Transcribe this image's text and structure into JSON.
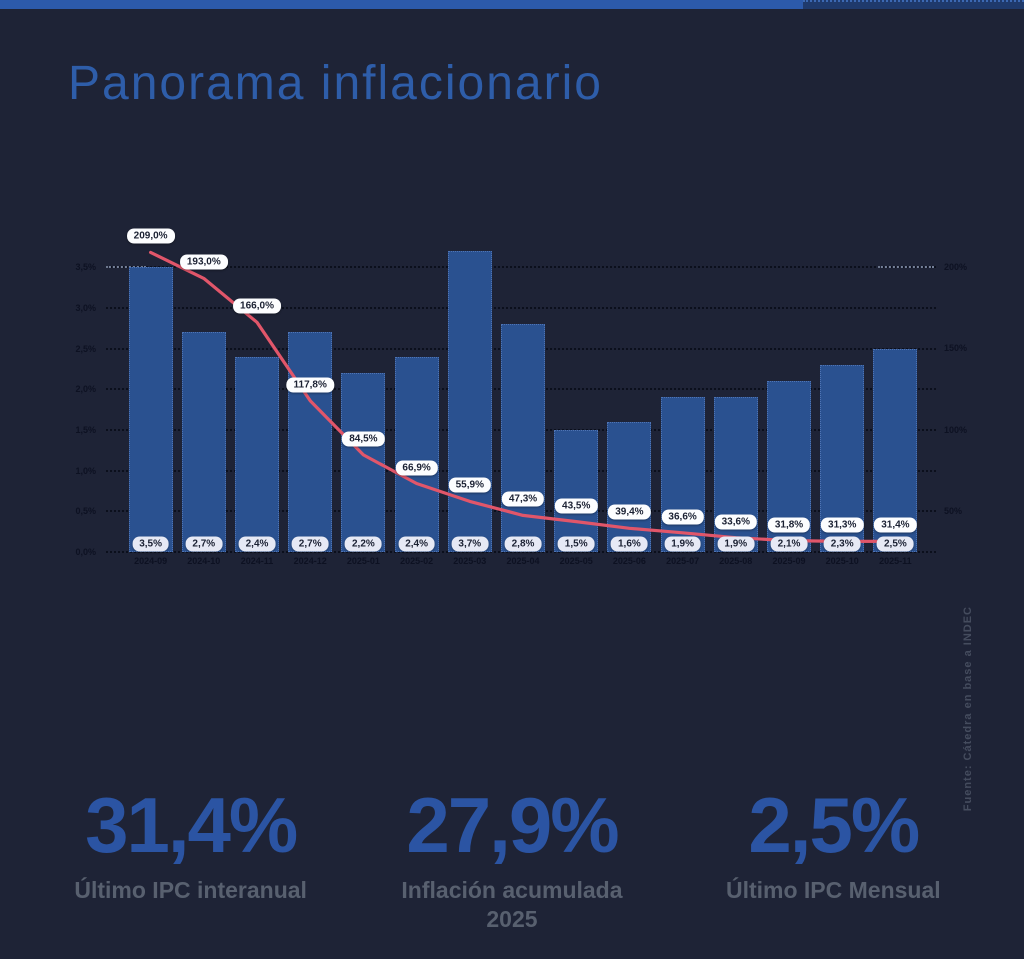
{
  "page": {
    "title": "Panorama inflacionario",
    "source_note": "Fuente: Cátedra en base a INDEC"
  },
  "chart_data": {
    "type": "bar",
    "title": "",
    "categories": [
      "2024-09",
      "2024-10",
      "2024-11",
      "2024-12",
      "2025-01",
      "2025-02",
      "2025-03",
      "2025-04",
      "2025-05",
      "2025-06",
      "2025-07",
      "2025-08",
      "2025-09",
      "2025-10",
      "2025-11"
    ],
    "series": [
      {
        "name": "IPC mensual",
        "type": "bar",
        "axis": "left",
        "values": [
          3.5,
          2.7,
          2.4,
          2.7,
          2.2,
          2.4,
          3.7,
          2.8,
          1.5,
          1.6,
          1.9,
          1.9,
          2.1,
          2.3,
          2.5
        ],
        "labels": [
          "3,5%",
          "2,7%",
          "2,4%",
          "2,7%",
          "2,2%",
          "2,4%",
          "3,7%",
          "2,8%",
          "1,5%",
          "1,6%",
          "1,9%",
          "1,9%",
          "2,1%",
          "2,3%",
          "2,5%"
        ]
      },
      {
        "name": "IPC interanual",
        "type": "line",
        "axis": "right",
        "values": [
          209.0,
          193.0,
          166.0,
          117.8,
          84.5,
          66.9,
          55.9,
          47.3,
          43.5,
          39.4,
          36.6,
          33.6,
          31.8,
          31.3,
          31.4
        ],
        "labels": [
          "209,0%",
          "193,0%",
          "166,0%",
          "117,8%",
          "84,5%",
          "66,9%",
          "55,9%",
          "47,3%",
          "43,5%",
          "39,4%",
          "36,6%",
          "33,6%",
          "31,8%",
          "31,3%",
          "31,4%"
        ]
      }
    ],
    "left_axis": {
      "ticks": [
        "3,5%",
        "3,0%",
        "2,5%",
        "2,0%",
        "1,5%",
        "1,0%",
        "0,5%",
        "0,0%"
      ],
      "tick_values": [
        3.5,
        3.0,
        2.5,
        2.0,
        1.5,
        1.0,
        0.5,
        0.0
      ],
      "min": 0,
      "max": 3.5
    },
    "right_axis": {
      "ticks": [
        "200%",
        "150%",
        "100%",
        "50%"
      ],
      "tick_values": [
        200,
        150,
        100,
        50
      ]
    },
    "grid": "dotted"
  },
  "stats": [
    {
      "value": "31,4%",
      "label": "Último IPC interanual"
    },
    {
      "value": "27,9%",
      "label": "Inflación acumulada 2025"
    },
    {
      "value": "2,5%",
      "label": "Último IPC Mensual"
    }
  ],
  "colors": {
    "background": "#1e2336",
    "accent_bar": "#2c5aab",
    "accent_bar_dark": "#1f3a6c",
    "bar_fill": "#2a5190",
    "line": "#e1566a",
    "title": "#2e5da9",
    "stat_value": "#2b54a3",
    "stat_label": "#58606f",
    "pill_bg": "#e6e9f5",
    "pill_text": "#1b2133"
  }
}
